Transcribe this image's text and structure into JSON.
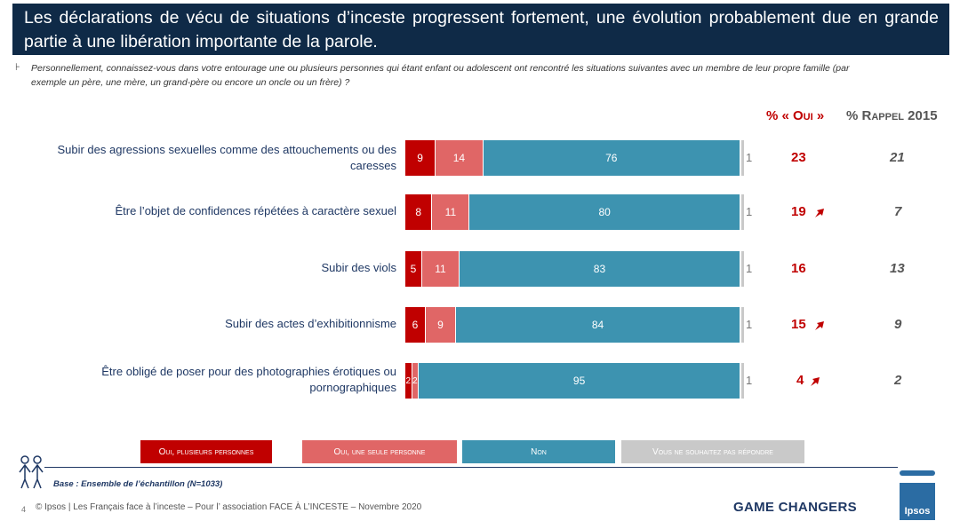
{
  "title": "Les déclarations de vécu de situations d’inceste progressent fortement, une évolution probablement due en grande partie à une libération importante de la parole.",
  "question": "Personnellement, connaissez-vous dans votre entourage une ou plusieurs personnes qui étant enfant ou adolescent ont rencontré les situations suivantes avec un membre de leur propre famille (par exemple un père, une mère, un grand-père ou encore un oncle ou un frère) ?",
  "col_headers": {
    "oui": "% « Oui »",
    "rappel": "% Rappel 2015"
  },
  "colors": {
    "plusieurs": "#c00000",
    "une": "#e06666",
    "non": "#3d93b0",
    "noans": "#c9c9c9"
  },
  "chart_data": {
    "type": "bar",
    "stacked": true,
    "orientation": "horizontal",
    "categories": [
      "Subir des agressions sexuelles comme des attouchements ou des caresses",
      "Être l’objet de confidences répétées à caractère sexuel",
      "Subir des viols",
      "Subir des actes d’exhibitionnisme",
      "Être obligé de poser pour des photographies érotiques ou pornographiques"
    ],
    "series": [
      {
        "name": "Oui, plusieurs personnes",
        "values": [
          9,
          8,
          5,
          6,
          2
        ]
      },
      {
        "name": "Oui, une seule personne",
        "values": [
          14,
          11,
          11,
          9,
          2
        ]
      },
      {
        "name": "Non",
        "values": [
          76,
          80,
          83,
          84,
          95
        ]
      },
      {
        "name": "Vous ne souhaitez pas répondre",
        "values": [
          1,
          1,
          1,
          1,
          1
        ]
      }
    ],
    "oui_total": [
      23,
      19,
      16,
      15,
      4
    ],
    "oui_trend_up": [
      false,
      true,
      false,
      true,
      true
    ],
    "rappel_2015": [
      21,
      7,
      13,
      9,
      2
    ]
  },
  "legend": [
    "Oui, plusieurs personnes",
    "Oui, une seule personne",
    "Non",
    "Vous ne souhaitez pas répondre"
  ],
  "footer": {
    "base": "Base : Ensemble de l’échantillon (N=1033)",
    "page": "4",
    "copyright": "© Ipsos | Les Français face à l’inceste – Pour l’ association FACE À L’INCESTE – Novembre 2020",
    "tagline": "GAME CHANGERS",
    "logo": "Ipsos"
  }
}
